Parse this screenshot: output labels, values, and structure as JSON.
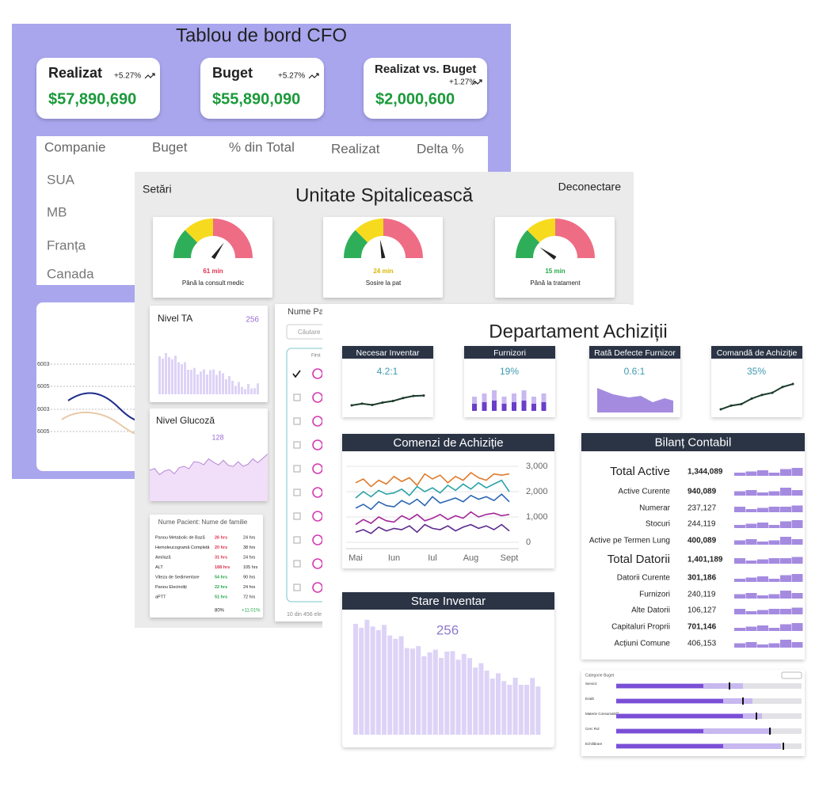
{
  "cfo": {
    "title": "Tablou de bord CFO",
    "cards": [
      {
        "label": "Realizat",
        "change": "+5.27%",
        "value": "$57,890,690"
      },
      {
        "label": "Buget",
        "change": "+5.27%",
        "value": "$55,890,090"
      },
      {
        "label": "Realizat vs. Buget",
        "change": "+1.27%",
        "value": "$2,000,600"
      }
    ],
    "table": {
      "header": [
        "Companie",
        "Buget",
        "% din Total",
        "Realizat",
        "Delta %"
      ],
      "rows": [
        "SUA",
        "MB",
        "Franța",
        "Canada"
      ]
    },
    "chart_labels": [
      "6003",
      "6005",
      "6003",
      "6005"
    ]
  },
  "hospital": {
    "settings": "Setări",
    "title": "Unitate Spitalicească",
    "logout": "Deconectare",
    "gauges": [
      {
        "value": "61 min",
        "label": "Până la consult medic"
      },
      {
        "value": "24 min",
        "label": "Sosire la pat"
      },
      {
        "value": "15 min",
        "label": "Până la tratament"
      }
    ],
    "ta": {
      "label": "Nivel TA",
      "value": "256"
    },
    "glucose": {
      "label": "Nivel Glucoză",
      "value": "128"
    },
    "labs": {
      "title": "Nume Pacient: Nume de familie",
      "rows": [
        [
          "Panou Metabolic de Bază",
          "26 hrs",
          "24 hrs"
        ],
        [
          "Hemoleucogramă Completă",
          "20 hrs",
          "38 hrs"
        ],
        [
          "Amilază",
          "31 hrs",
          "24 hrs"
        ],
        [
          "ALT",
          "188 hrs",
          "105 hrs"
        ],
        [
          "Viteza de Sedimentare",
          "54 hrs",
          "90 hrs"
        ],
        [
          "Panou Electroliți",
          "22 hrs",
          "24 hrs"
        ],
        [
          "aPTT",
          "51 hrs",
          "72 hrs"
        ]
      ],
      "footer": [
        "80%",
        "+11.01%"
      ]
    },
    "patients": {
      "title": "Nume Pacient",
      "search": "Căutare",
      "column": "First",
      "footer": "10 din 456 ele"
    }
  },
  "procurement": {
    "title": "Departament Achiziții",
    "kpis": [
      {
        "title": "Necesar Inventar",
        "value": "4.2:1"
      },
      {
        "title": "Furnizori",
        "value": "19%"
      },
      {
        "title": "Rată Defecte Furnizor",
        "value": "0.6:1"
      },
      {
        "title": "Comandă de Achiziție",
        "value": "35%"
      }
    ],
    "orders_title": "Comenzi de Achiziție",
    "balance": {
      "title": "Bilanț Contabil",
      "rows": [
        [
          "Total Active",
          "1,344,089"
        ],
        [
          "Active Curente",
          "940,089"
        ],
        [
          "Numerar",
          "237,127"
        ],
        [
          "Stocuri",
          "244,119"
        ],
        [
          "Active pe Termen Lung",
          "400,089"
        ],
        [
          "Total Datorii",
          "1,401,189"
        ],
        [
          "Datorii Curente",
          "301,186"
        ],
        [
          "Furnizori",
          "240,119"
        ],
        [
          "Alte Datorii",
          "106,127"
        ],
        [
          "Capitaluri Proprii",
          "701,146"
        ],
        [
          "Acțiuni Comune",
          "406,153"
        ]
      ]
    },
    "inventory": {
      "title": "Stare Inventar",
      "value": "256"
    },
    "budget": {
      "title": "Categorie Buget",
      "rows": [
        "Servicii",
        "Erată",
        "Materie Consumabilă",
        "Cerc Rol",
        "Echilibrare"
      ]
    }
  },
  "chart_data": {
    "type": "line",
    "ylim": [
      0,
      3000
    ],
    "yticks": [
      0,
      {
        "value": 1000,
        "label": "1,000"
      },
      {
        "value": 2000,
        "label": "2,000"
      },
      {
        "value": 3000,
        "label": "3,000"
      }
    ],
    "categories": [
      "Mai",
      null,
      null,
      null,
      null,
      "Iun",
      null,
      null,
      null,
      null,
      "Iul",
      null,
      null,
      null,
      null,
      "Aug",
      null,
      null,
      null,
      null,
      "Sept"
    ],
    "series": [
      {
        "color": "#e07b2c",
        "values": [
          2350,
          2500,
          2200,
          2450,
          2300,
          2600,
          2400,
          2550,
          2250,
          2700,
          2500,
          2650,
          2350,
          2600,
          2450,
          2750,
          2550,
          2450,
          2700,
          2650,
          2700
        ]
      },
      {
        "color": "#2aa3a8",
        "values": [
          1750,
          2000,
          1800,
          2050,
          1900,
          1950,
          2100,
          1850,
          2200,
          2000,
          2150,
          1950,
          2250,
          2050,
          2300,
          2100,
          2350,
          2150,
          2300,
          2450,
          2000
        ]
      },
      {
        "color": "#2b66b3",
        "values": [
          1350,
          1500,
          1300,
          1600,
          1450,
          1400,
          1650,
          1500,
          1700,
          1450,
          1800,
          1550,
          1650,
          1750,
          1600,
          1850,
          1700,
          1800,
          1650,
          1900,
          1600
        ]
      },
      {
        "color": "#a3289a",
        "values": [
          700,
          900,
          750,
          1000,
          850,
          800,
          1050,
          900,
          1100,
          850,
          950,
          1100,
          900,
          1050,
          950,
          1200,
          1000,
          1100,
          1150,
          1050,
          1100
        ]
      },
      {
        "color": "#5b2a8f",
        "values": [
          400,
          500,
          350,
          600,
          450,
          550,
          500,
          650,
          400,
          700,
          550,
          500,
          650,
          450,
          600,
          700,
          550,
          650,
          500,
          700,
          450
        ]
      }
    ]
  }
}
